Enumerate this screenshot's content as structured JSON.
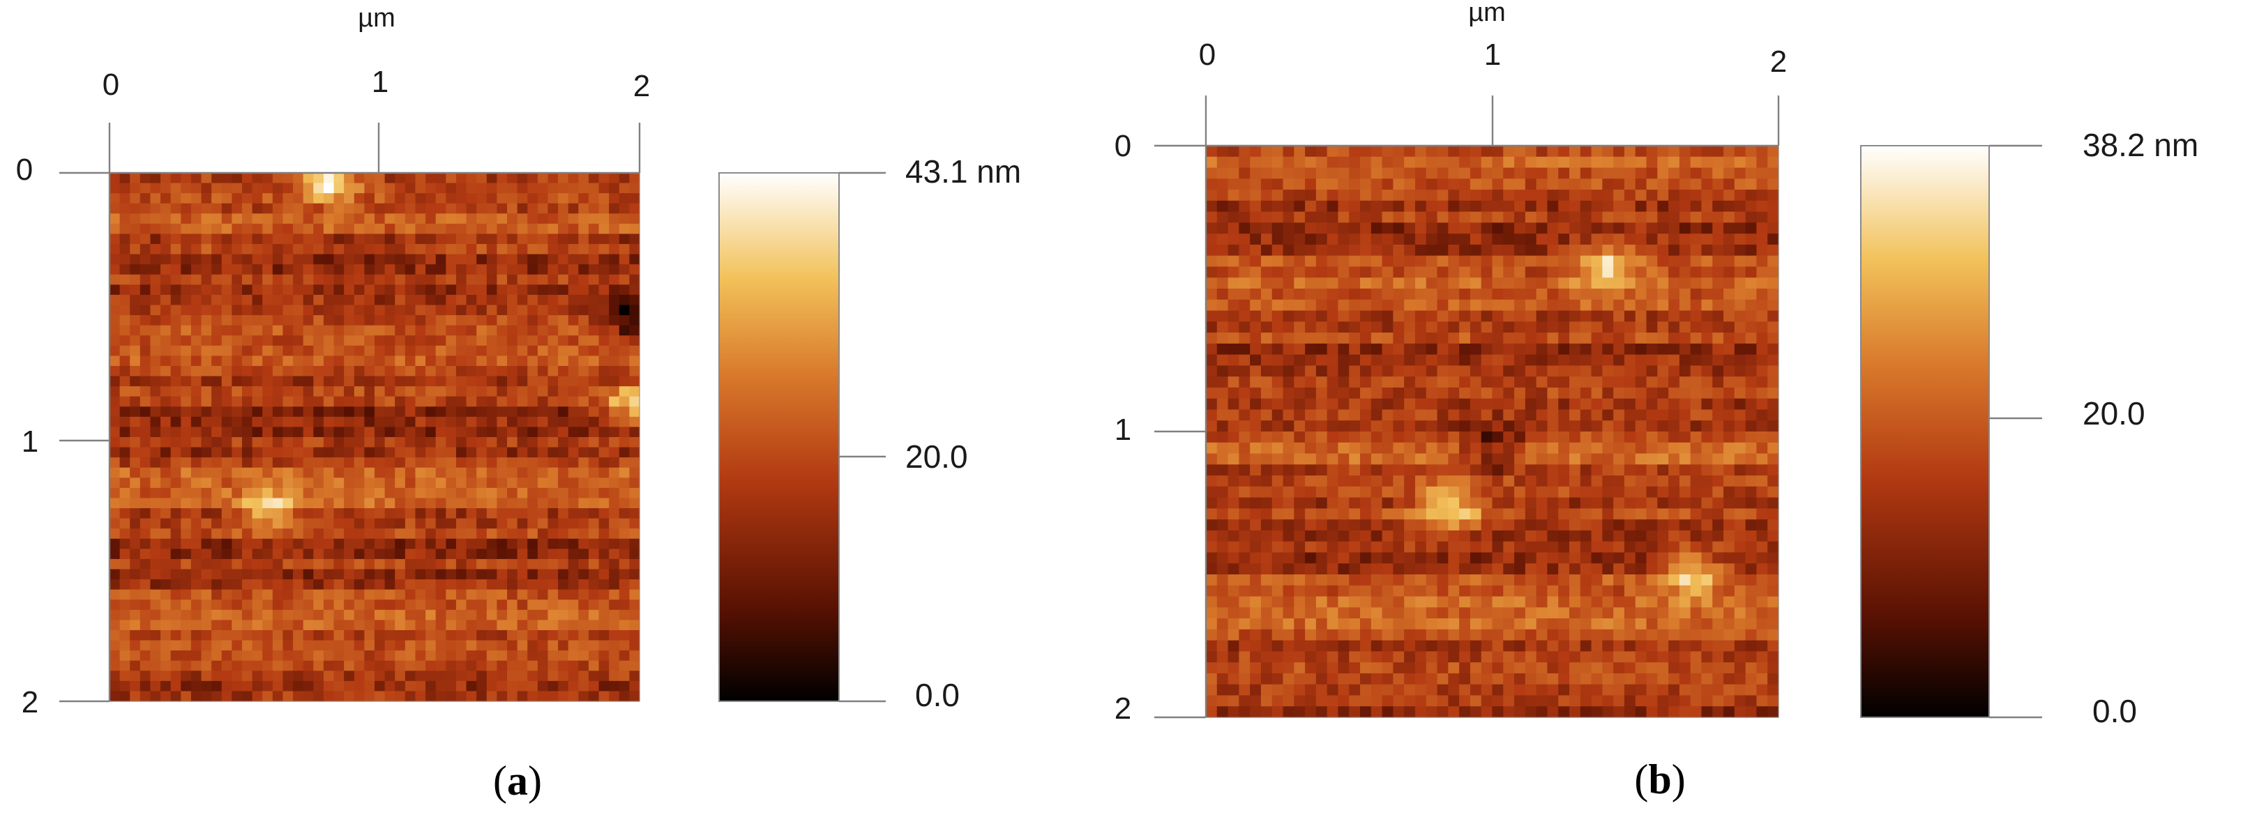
{
  "chart_data": [
    {
      "type": "heatmap",
      "panel": "a",
      "caption": {
        "open": "(",
        "letter": "a",
        "close": ")"
      },
      "xaxis": {
        "unit": "µm",
        "ticks": [
          "0",
          "1",
          "2"
        ],
        "range": [
          0,
          2
        ]
      },
      "yaxis": {
        "ticks": [
          "0",
          "1",
          "2"
        ],
        "range": [
          0,
          2
        ]
      },
      "colorbar": {
        "range": [
          0,
          43.1
        ],
        "tick_values": [
          43.1,
          20.0,
          0.0
        ],
        "tick_labels": [
          "43.1 nm",
          "20.0",
          "0.0"
        ]
      },
      "colormap": [
        "#000000",
        "#5a1203",
        "#b33a12",
        "#d97a2c",
        "#f2c15a",
        "#ffffff"
      ],
      "features": [
        {
          "desc": "bright particle at top edge",
          "x_um": 0.82,
          "y_um": 0.03,
          "height_nm": 42
        },
        {
          "desc": "bright lump at right edge",
          "x_um": 1.97,
          "y_um": 0.88,
          "height_nm": 36
        },
        {
          "desc": "dark pit at right edge",
          "x_um": 1.98,
          "y_um": 0.55,
          "height_nm": 2
        },
        {
          "desc": "bright streak",
          "x_um": 0.6,
          "y_um": 1.28,
          "height_nm": 33
        }
      ]
    },
    {
      "type": "heatmap",
      "panel": "b",
      "caption": {
        "open": "(",
        "letter": "b",
        "close": ")"
      },
      "xaxis": {
        "unit": "µm",
        "ticks": [
          "0",
          "1",
          "2"
        ],
        "range": [
          0,
          2
        ]
      },
      "yaxis": {
        "ticks": [
          "0",
          "1",
          "2"
        ],
        "range": [
          0,
          2
        ]
      },
      "colorbar": {
        "range": [
          0,
          38.2
        ],
        "tick_values": [
          38.2,
          20.0,
          0.0
        ],
        "tick_labels": [
          "38.2 nm",
          "20.0",
          "0.0"
        ]
      },
      "colormap": [
        "#000000",
        "#5a1203",
        "#b33a12",
        "#d97a2c",
        "#f2c15a",
        "#ffffff"
      ],
      "features": [
        {
          "desc": "bright spot",
          "x_um": 1.4,
          "y_um": 0.42,
          "height_nm": 32
        },
        {
          "desc": "dark horizontal band",
          "x_um": 1.0,
          "y_um": 1.05,
          "height_nm": 6
        },
        {
          "desc": "bright streak",
          "x_um": 0.85,
          "y_um": 1.27,
          "height_nm": 34
        },
        {
          "desc": "bright region",
          "x_um": 1.7,
          "y_um": 1.5,
          "height_nm": 31
        }
      ]
    }
  ]
}
